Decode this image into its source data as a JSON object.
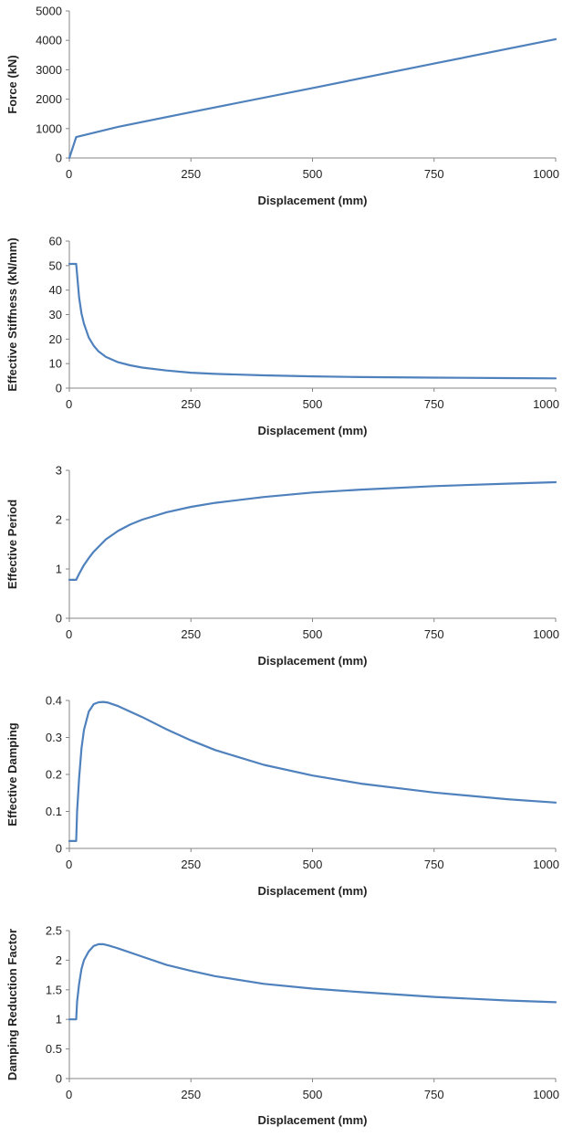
{
  "colors": {
    "series": "#4f81bd",
    "axis": "#868686",
    "text": "#222222",
    "background": "#ffffff"
  },
  "chart_data": [
    {
      "type": "line",
      "title": "",
      "xlabel": "Displacement (mm)",
      "ylabel": "Force (kN)",
      "xlim": [
        0,
        1000
      ],
      "ylim": [
        0,
        5000
      ],
      "xticks": [
        0,
        250,
        500,
        750,
        1000
      ],
      "yticks": [
        0,
        1000,
        2000,
        3000,
        4000,
        5000
      ],
      "xtick_labels": [
        "0",
        "250",
        "500",
        "750",
        "1000"
      ],
      "ytick_labels": [
        "0",
        "1000",
        "2000",
        "3000",
        "4000",
        "5000"
      ],
      "grid": false,
      "legend": "none",
      "series": [
        {
          "color": "#4f81bd",
          "x": [
            0,
            14,
            100,
            250,
            500,
            750,
            1000
          ],
          "y": [
            0,
            710,
            1060,
            1560,
            2380,
            3210,
            4040
          ]
        }
      ]
    },
    {
      "type": "line",
      "title": "",
      "xlabel": "Displacement (mm)",
      "ylabel": "Effective Stiffness (kN/mm)",
      "xlim": [
        0,
        1000
      ],
      "ylim": [
        0,
        60
      ],
      "xticks": [
        0,
        250,
        500,
        750,
        1000
      ],
      "yticks": [
        0,
        10,
        20,
        30,
        40,
        50,
        60
      ],
      "xtick_labels": [
        "0",
        "250",
        "500",
        "750",
        "1000"
      ],
      "ytick_labels": [
        "0",
        "10",
        "20",
        "30",
        "40",
        "50",
        "60"
      ],
      "grid": false,
      "legend": "none",
      "series": [
        {
          "color": "#4f81bd",
          "x": [
            0,
            14,
            20,
            25,
            30,
            40,
            50,
            60,
            75,
            100,
            125,
            150,
            200,
            250,
            300,
            400,
            500,
            600,
            750,
            900,
            1000
          ],
          "y": [
            50.7,
            50.7,
            37.0,
            30.5,
            26.3,
            20.6,
            17.3,
            15.0,
            12.8,
            10.6,
            9.3,
            8.4,
            7.2,
            6.3,
            5.8,
            5.2,
            4.8,
            4.5,
            4.3,
            4.1,
            4.0
          ]
        }
      ]
    },
    {
      "type": "line",
      "title": "",
      "xlabel": "Displacement (mm)",
      "ylabel": "Effective Period",
      "xlim": [
        0,
        1000
      ],
      "ylim": [
        0,
        3
      ],
      "xticks": [
        0,
        250,
        500,
        750,
        1000
      ],
      "yticks": [
        0,
        1,
        2,
        3
      ],
      "xtick_labels": [
        "0",
        "250",
        "500",
        "750",
        "1000"
      ],
      "ytick_labels": [
        "0",
        "1",
        "2",
        "3"
      ],
      "grid": false,
      "legend": "none",
      "series": [
        {
          "color": "#4f81bd",
          "x": [
            0,
            14,
            20,
            30,
            40,
            50,
            75,
            100,
            125,
            150,
            200,
            250,
            300,
            400,
            500,
            600,
            750,
            900,
            1000
          ],
          "y": [
            0.78,
            0.78,
            0.9,
            1.08,
            1.22,
            1.35,
            1.6,
            1.77,
            1.9,
            2.0,
            2.15,
            2.26,
            2.34,
            2.46,
            2.55,
            2.61,
            2.68,
            2.73,
            2.76
          ]
        }
      ]
    },
    {
      "type": "line",
      "title": "",
      "xlabel": "Displacement (mm)",
      "ylabel": "Effective Damping",
      "xlim": [
        0,
        1000
      ],
      "ylim": [
        0,
        0.4
      ],
      "xticks": [
        0,
        250,
        500,
        750,
        1000
      ],
      "yticks": [
        0,
        0.1,
        0.2,
        0.3,
        0.4
      ],
      "xtick_labels": [
        "0",
        "250",
        "500",
        "750",
        "1000"
      ],
      "ytick_labels": [
        "0",
        "0.1",
        "0.2",
        "0.3",
        "0.4"
      ],
      "grid": false,
      "legend": "none",
      "series": [
        {
          "color": "#4f81bd",
          "x": [
            0,
            14,
            16,
            20,
            25,
            30,
            40,
            50,
            60,
            70,
            80,
            100,
            150,
            200,
            250,
            300,
            400,
            500,
            600,
            750,
            900,
            1000
          ],
          "y": [
            0.02,
            0.02,
            0.1,
            0.19,
            0.27,
            0.32,
            0.37,
            0.39,
            0.395,
            0.396,
            0.394,
            0.385,
            0.355,
            0.322,
            0.292,
            0.266,
            0.226,
            0.197,
            0.175,
            0.151,
            0.133,
            0.124
          ]
        }
      ]
    },
    {
      "type": "line",
      "title": "",
      "xlabel": "Displacement (mm)",
      "ylabel": "Damping Reduction Factor",
      "xlim": [
        0,
        1000
      ],
      "ylim": [
        0,
        2.5
      ],
      "xticks": [
        0,
        250,
        500,
        750,
        1000
      ],
      "yticks": [
        0,
        0.5,
        1,
        1.5,
        2,
        2.5
      ],
      "xtick_labels": [
        "0",
        "250",
        "500",
        "750",
        "1000"
      ],
      "ytick_labels": [
        "0",
        "0.5",
        "1",
        "1.5",
        "2",
        "2.5"
      ],
      "grid": false,
      "legend": "none",
      "series": [
        {
          "color": "#4f81bd",
          "x": [
            0,
            14,
            16,
            20,
            25,
            30,
            40,
            50,
            60,
            70,
            80,
            100,
            150,
            200,
            250,
            300,
            400,
            500,
            600,
            750,
            900,
            1000
          ],
          "y": [
            1.0,
            1.0,
            1.3,
            1.6,
            1.85,
            2.0,
            2.15,
            2.24,
            2.27,
            2.27,
            2.25,
            2.2,
            2.06,
            1.92,
            1.82,
            1.73,
            1.6,
            1.52,
            1.46,
            1.38,
            1.32,
            1.29
          ]
        }
      ]
    }
  ]
}
